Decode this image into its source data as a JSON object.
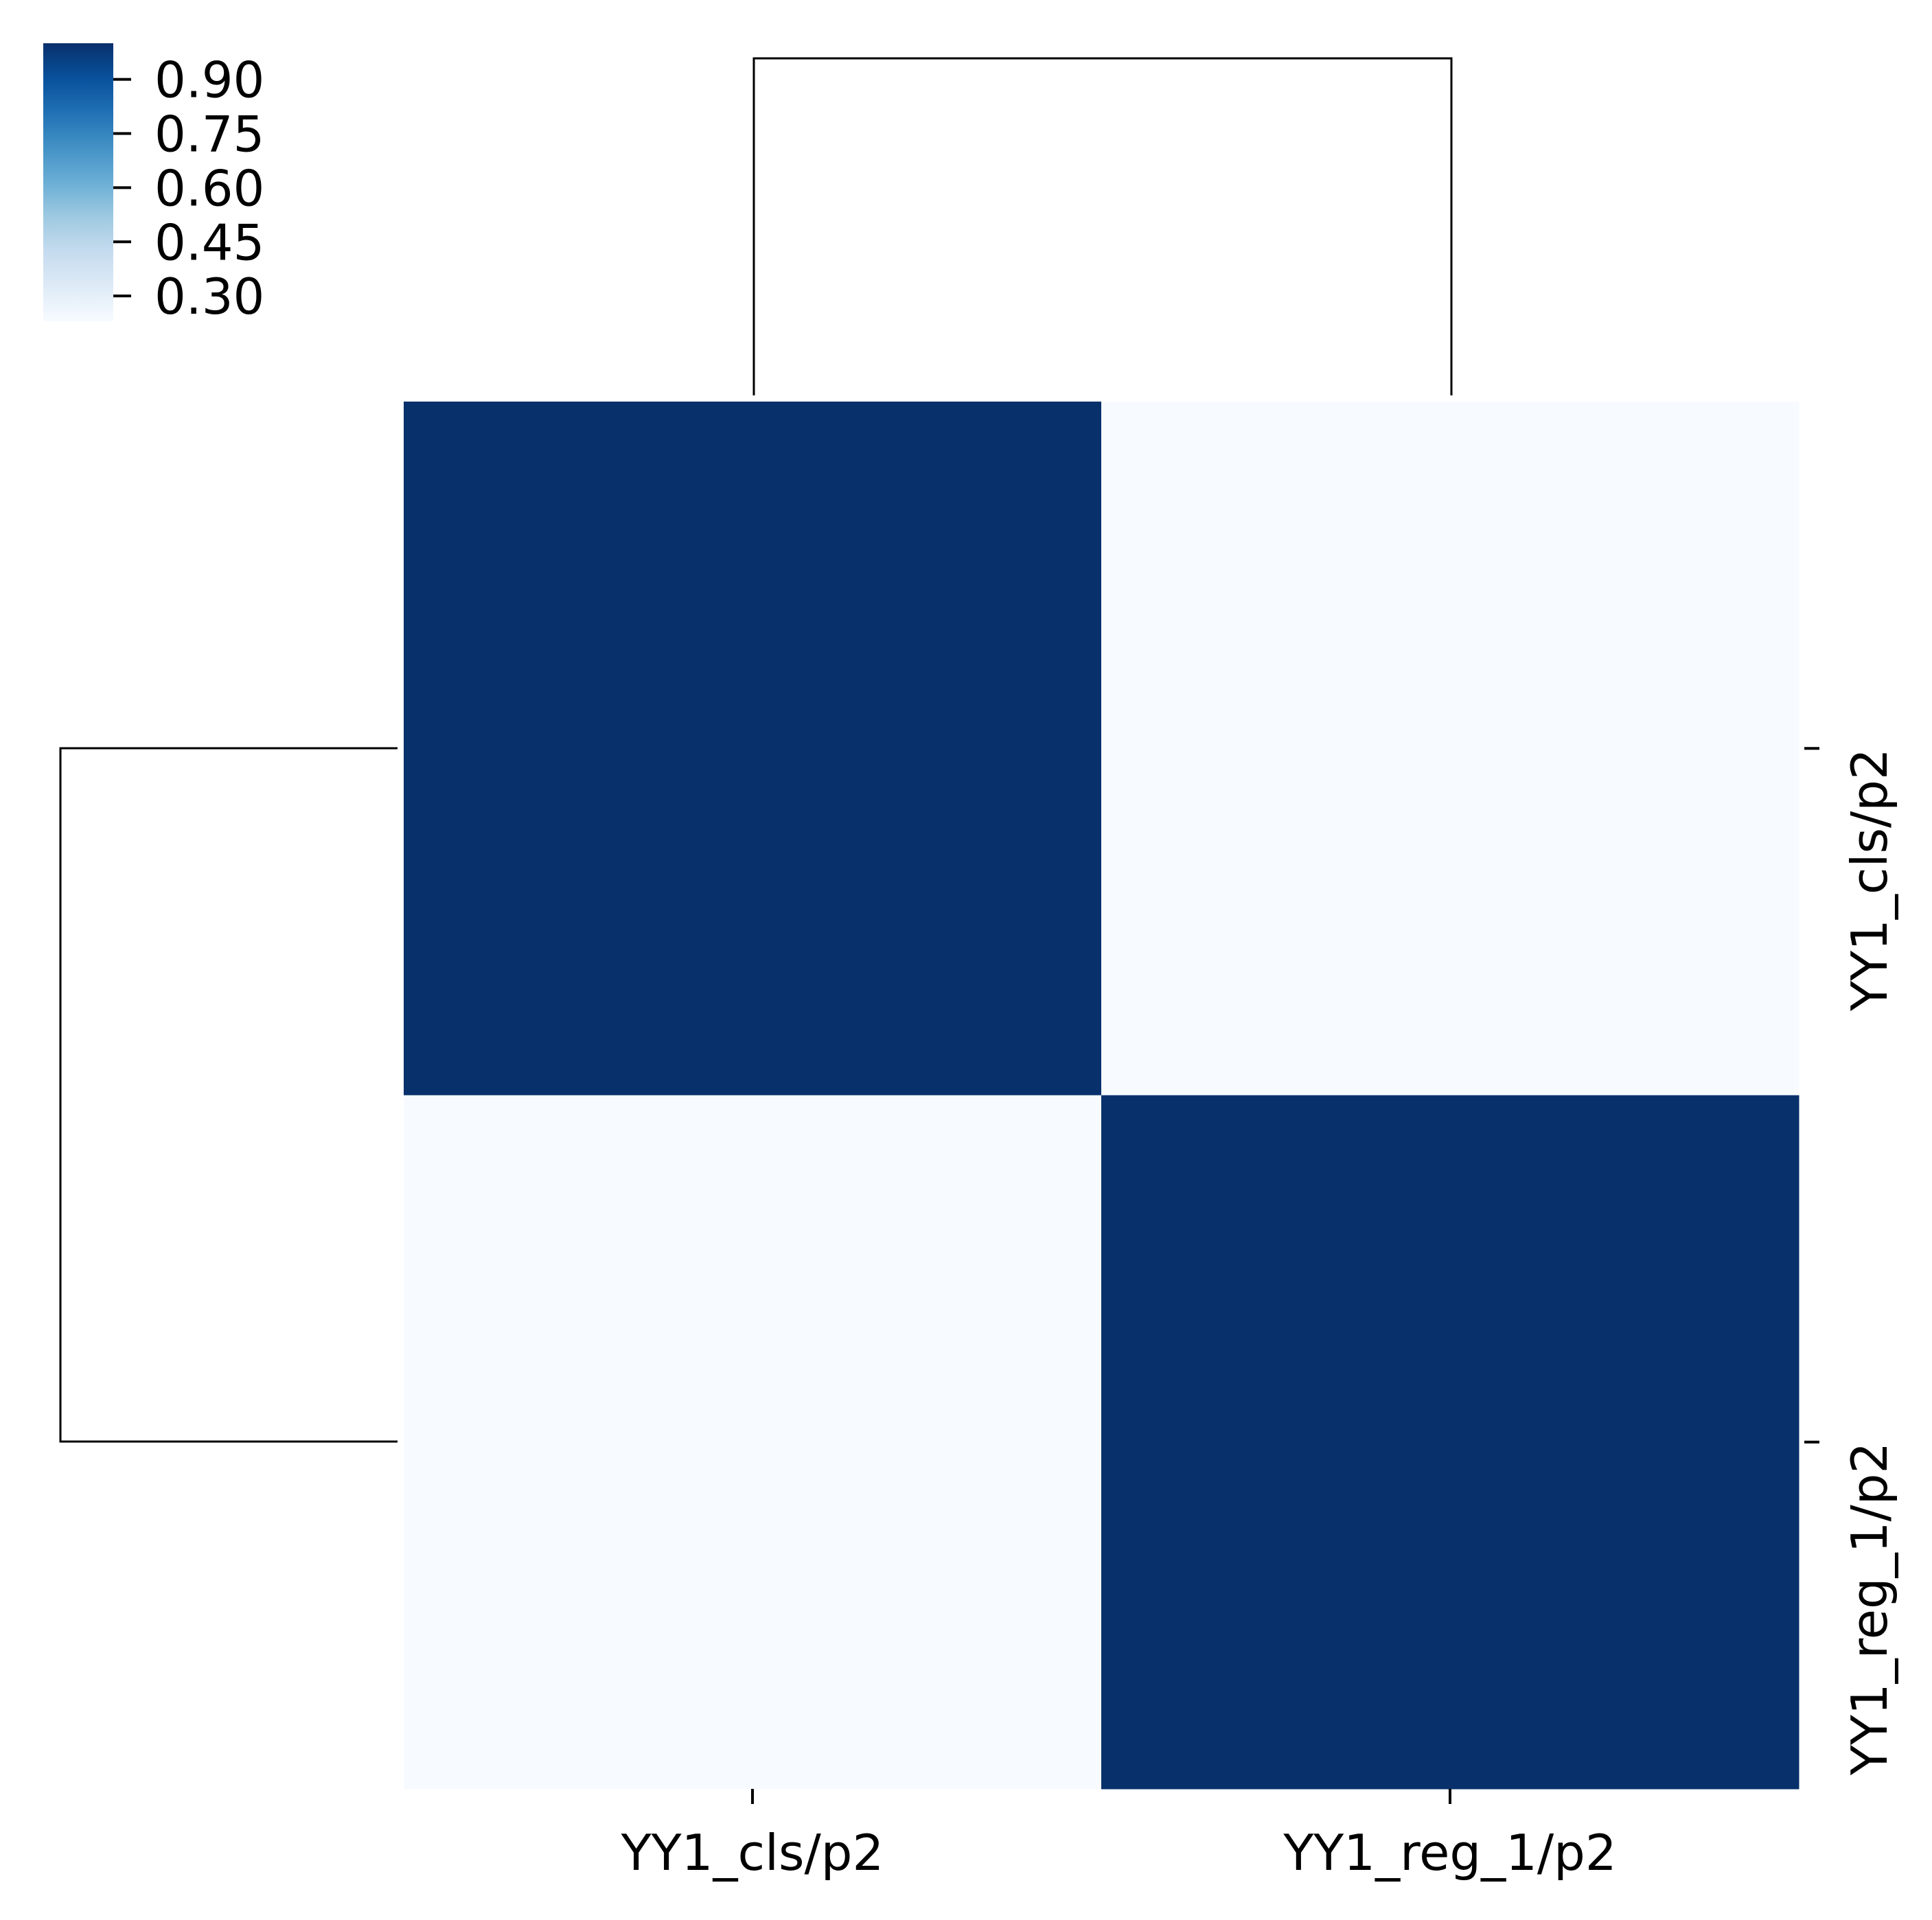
{
  "chart_data": {
    "type": "heatmap",
    "title": "",
    "xlabel": "",
    "ylabel": "",
    "x_categories": [
      "YY1_cls/p2",
      "YY1_reg_1/p2"
    ],
    "y_categories": [
      "YY1_cls/p2",
      "YY1_reg_1/p2"
    ],
    "values": [
      [
        1.0,
        0.23
      ],
      [
        0.23,
        1.0
      ]
    ],
    "colormap": "Blues",
    "colorbar": {
      "vmin": 0.23,
      "vmax": 1.0,
      "ticks": [
        0.9,
        0.75,
        0.6,
        0.45,
        0.3
      ],
      "tick_labels": [
        "0.90",
        "0.75",
        "0.60",
        "0.45",
        "0.30"
      ],
      "placement": "top-left"
    },
    "dendrograms": {
      "column": "top",
      "row": "left"
    },
    "grid": false
  }
}
